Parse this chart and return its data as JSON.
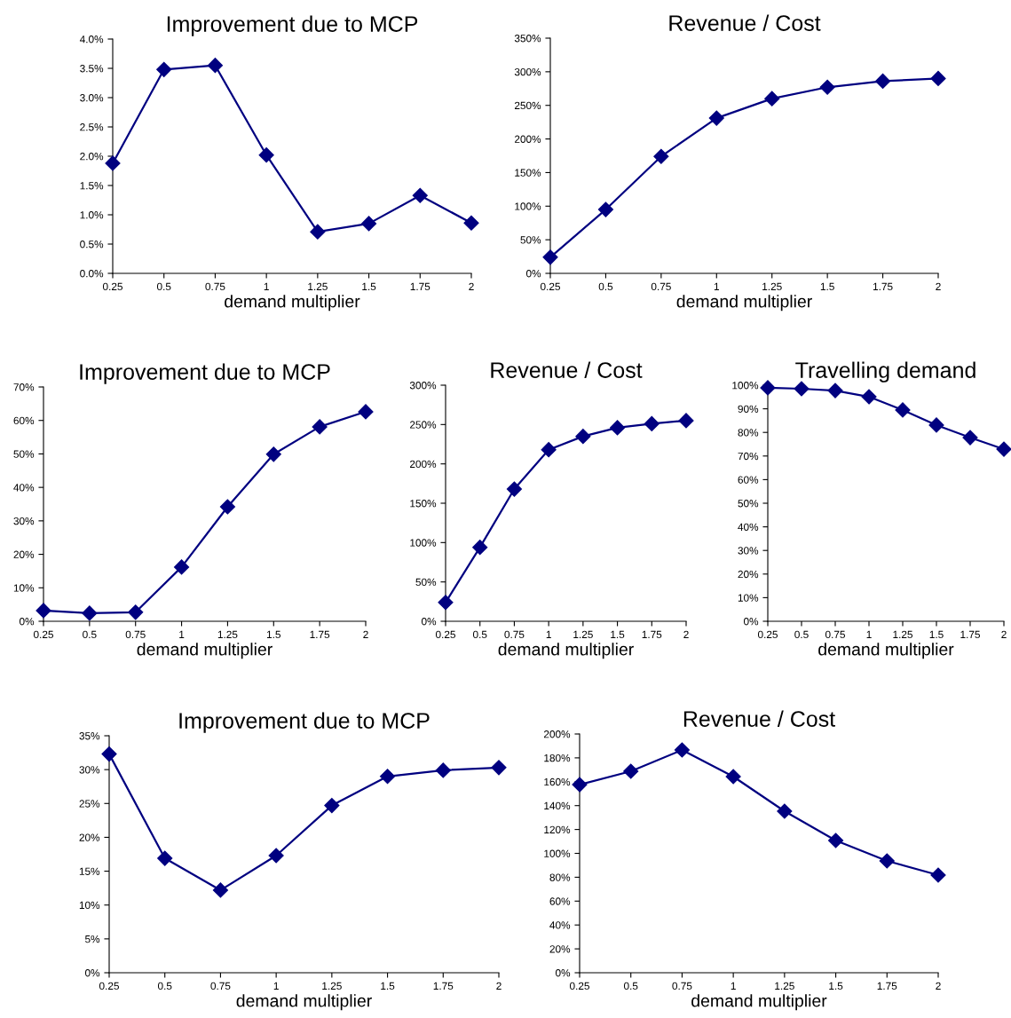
{
  "chart_data": [
    {
      "type": "line",
      "title": "Improvement due to MCP",
      "xlabel": "demand multiplier",
      "categories": [
        "0.25",
        "0.5",
        "0.75",
        "1",
        "1.25",
        "1.5",
        "1.75",
        "2"
      ],
      "series": [
        {
          "color": "#000080",
          "values": [
            1.88,
            3.48,
            3.55,
            2.02,
            0.71,
            0.85,
            1.33,
            0.86
          ]
        }
      ],
      "marker": "diamond",
      "grid": false,
      "ylim": [
        0,
        4
      ],
      "yticks": [
        {
          "value": 0,
          "label": "0.0%"
        },
        {
          "value": 0.5,
          "label": "0.5%"
        },
        {
          "value": 1,
          "label": "1.0%"
        },
        {
          "value": 1.5,
          "label": "1.5%"
        },
        {
          "value": 2,
          "label": "2.0%"
        },
        {
          "value": 2.5,
          "label": "2.5%"
        },
        {
          "value": 3,
          "label": "3.0%"
        },
        {
          "value": 3.5,
          "label": "3.5%"
        },
        {
          "value": 4,
          "label": "4.0%"
        }
      ]
    },
    {
      "type": "line",
      "title": "Revenue / Cost",
      "xlabel": "demand multiplier",
      "categories": [
        "0.25",
        "0.5",
        "0.75",
        "1",
        "1.25",
        "1.5",
        "1.75",
        "2"
      ],
      "series": [
        {
          "color": "#000080",
          "values": [
            24,
            95,
            174,
            231,
            260,
            277,
            286,
            290
          ]
        }
      ],
      "marker": "diamond",
      "grid": false,
      "ylim": [
        0,
        350
      ],
      "yticks": [
        {
          "value": 0,
          "label": "0%"
        },
        {
          "value": 50,
          "label": "50%"
        },
        {
          "value": 100,
          "label": "100%"
        },
        {
          "value": 150,
          "label": "150%"
        },
        {
          "value": 200,
          "label": "200%"
        },
        {
          "value": 250,
          "label": "250%"
        },
        {
          "value": 300,
          "label": "300%"
        },
        {
          "value": 350,
          "label": "350%"
        }
      ]
    },
    {
      "type": "line",
      "title": "Improvement due to MCP",
      "xlabel": "demand multiplier",
      "categories": [
        "0.25",
        "0.5",
        "0.75",
        "1",
        "1.25",
        "1.5",
        "1.75",
        "2"
      ],
      "series": [
        {
          "color": "#000080",
          "values": [
            3.2,
            2.4,
            2.7,
            16.2,
            34.2,
            49.9,
            58.1,
            62.6
          ]
        }
      ],
      "marker": "diamond",
      "grid": false,
      "ylim": [
        0,
        70
      ],
      "yticks": [
        {
          "value": 0,
          "label": "0%"
        },
        {
          "value": 10,
          "label": "10%"
        },
        {
          "value": 20,
          "label": "20%"
        },
        {
          "value": 30,
          "label": "30%"
        },
        {
          "value": 40,
          "label": "40%"
        },
        {
          "value": 50,
          "label": "50%"
        },
        {
          "value": 60,
          "label": "60%"
        },
        {
          "value": 70,
          "label": "70%"
        }
      ]
    },
    {
      "type": "line",
      "title": "Revenue / Cost",
      "xlabel": "demand multiplier",
      "categories": [
        "0.25",
        "0.5",
        "0.75",
        "1",
        "1.25",
        "1.5",
        "1.75",
        "2"
      ],
      "series": [
        {
          "color": "#000080",
          "values": [
            24,
            94,
            168,
            218,
            235,
            246,
            251,
            255
          ]
        }
      ],
      "marker": "diamond",
      "grid": false,
      "ylim": [
        0,
        300
      ],
      "yticks": [
        {
          "value": 0,
          "label": "0%"
        },
        {
          "value": 50,
          "label": "50%"
        },
        {
          "value": 100,
          "label": "100%"
        },
        {
          "value": 150,
          "label": "150%"
        },
        {
          "value": 200,
          "label": "200%"
        },
        {
          "value": 250,
          "label": "250%"
        },
        {
          "value": 300,
          "label": "300%"
        }
      ]
    },
    {
      "type": "line",
      "title": "Travelling demand",
      "xlabel": "demand multiplier",
      "categories": [
        "0.25",
        "0.5",
        "0.75",
        "1",
        "1.25",
        "1.5",
        "1.75",
        "2"
      ],
      "series": [
        {
          "color": "#000080",
          "values": [
            98.9,
            98.5,
            97.7,
            95.1,
            89.5,
            83.1,
            77.8,
            72.9
          ]
        }
      ],
      "marker": "diamond",
      "grid": false,
      "ylim": [
        0,
        100
      ],
      "yticks": [
        {
          "value": 0,
          "label": "0%"
        },
        {
          "value": 10,
          "label": "10%"
        },
        {
          "value": 20,
          "label": "20%"
        },
        {
          "value": 30,
          "label": "30%"
        },
        {
          "value": 40,
          "label": "40%"
        },
        {
          "value": 50,
          "label": "50%"
        },
        {
          "value": 60,
          "label": "60%"
        },
        {
          "value": 70,
          "label": "70%"
        },
        {
          "value": 80,
          "label": "80%"
        },
        {
          "value": 90,
          "label": "90%"
        },
        {
          "value": 100,
          "label": "100%"
        }
      ]
    },
    {
      "type": "line",
      "title": "Improvement due to MCP",
      "xlabel": "demand multiplier",
      "categories": [
        "0.25",
        "0.5",
        "0.75",
        "1",
        "1.25",
        "1.5",
        "1.75",
        "2"
      ],
      "series": [
        {
          "color": "#000080",
          "values": [
            32.3,
            16.9,
            12.2,
            17.3,
            24.7,
            29.0,
            29.9,
            30.3
          ]
        }
      ],
      "marker": "diamond",
      "grid": false,
      "ylim": [
        0,
        35
      ],
      "yticks": [
        {
          "value": 0,
          "label": "0%"
        },
        {
          "value": 5,
          "label": "5%"
        },
        {
          "value": 10,
          "label": "10%"
        },
        {
          "value": 15,
          "label": "15%"
        },
        {
          "value": 20,
          "label": "20%"
        },
        {
          "value": 25,
          "label": "25%"
        },
        {
          "value": 30,
          "label": "30%"
        },
        {
          "value": 35,
          "label": "35%"
        }
      ]
    },
    {
      "type": "line",
      "title": "Revenue / Cost",
      "xlabel": "demand multiplier",
      "categories": [
        "0.25",
        "0.5",
        "0.75",
        "1",
        "1.25",
        "1.5",
        "1.75",
        "2"
      ],
      "series": [
        {
          "color": "#000080",
          "values": [
            157.6,
            168.8,
            186.6,
            164.3,
            135.3,
            110.8,
            93.7,
            81.8
          ]
        }
      ],
      "marker": "diamond",
      "grid": false,
      "ylim": [
        0,
        200
      ],
      "yticks": [
        {
          "value": 0,
          "label": "0%"
        },
        {
          "value": 20,
          "label": "20%"
        },
        {
          "value": 40,
          "label": "40%"
        },
        {
          "value": 60,
          "label": "60%"
        },
        {
          "value": 80,
          "label": "80%"
        },
        {
          "value": 100,
          "label": "100%"
        },
        {
          "value": 120,
          "label": "120%"
        },
        {
          "value": 140,
          "label": "140%"
        },
        {
          "value": 160,
          "label": "160%"
        },
        {
          "value": 180,
          "label": "180%"
        },
        {
          "value": 200,
          "label": "200%"
        }
      ]
    }
  ]
}
